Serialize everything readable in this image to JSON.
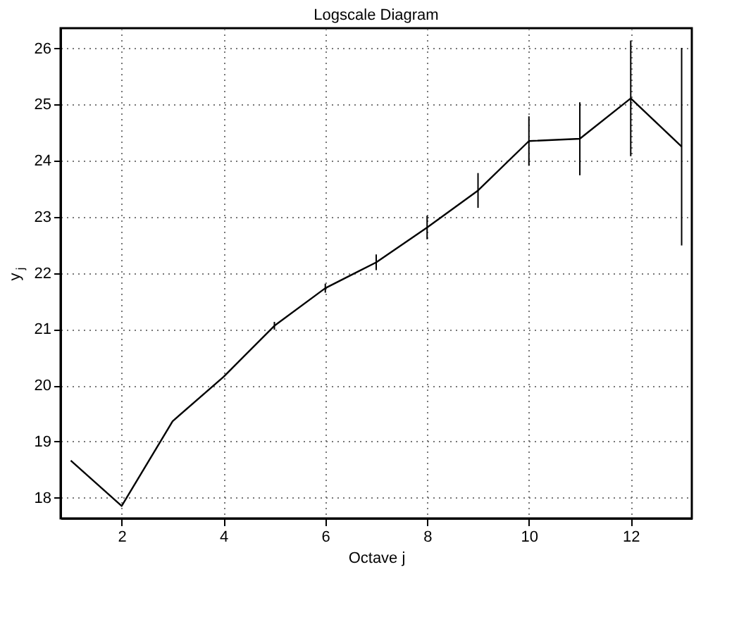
{
  "chart_data": {
    "type": "line",
    "title": "Logscale Diagram",
    "xlabel": "Octave j",
    "ylabel": "y$_{j}$",
    "x": [
      1,
      2,
      3,
      4,
      5,
      6,
      7,
      8,
      9,
      10,
      11,
      12,
      13
    ],
    "series": [
      {
        "color": "#000000",
        "values": [
          18.66,
          17.85,
          19.36,
          20.15,
          21.06,
          21.73,
          22.19,
          22.81,
          23.47,
          24.35,
          24.39,
          25.11,
          24.25
        ],
        "errors": [
          null,
          null,
          null,
          null,
          0.07,
          0.08,
          0.14,
          0.21,
          0.31,
          0.44,
          0.65,
          1.03,
          1.76
        ]
      }
    ],
    "xlim": [
      0.8,
      13.2
    ],
    "ylim": [
      17.63,
      26.36
    ],
    "xticks": [
      2,
      4,
      6,
      8,
      10,
      12
    ],
    "yticks": [
      18,
      19,
      20,
      21,
      22,
      23,
      24,
      25,
      26
    ],
    "grid": true,
    "marker": "none",
    "line_style": "solid"
  }
}
